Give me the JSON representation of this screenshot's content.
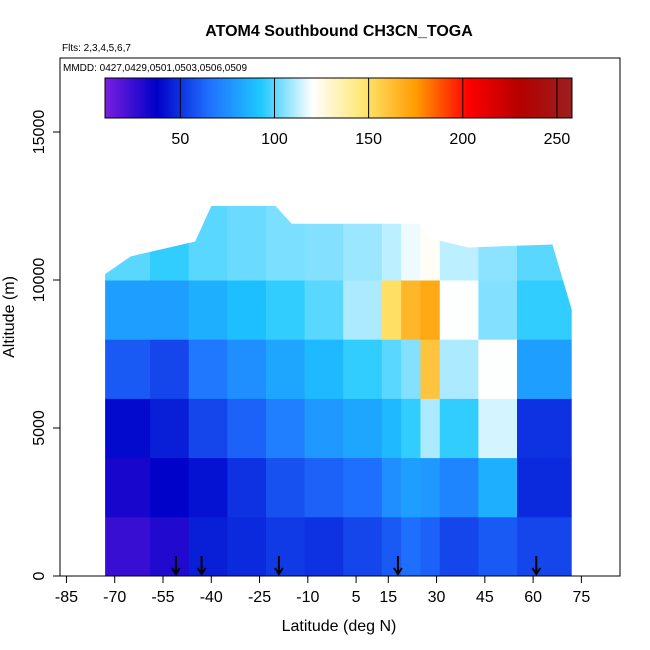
{
  "chart_data": {
    "type": "heatmap",
    "title": "ATOM4 Southbound CH3CN_TOGA",
    "flights_label": "Flts: 2,3,4,5,6,7",
    "mmdd_label": "MMDD: 0427,0429,0501,0503,0506,0509",
    "xlabel": "Latitude (deg N)",
    "ylabel": "Altitude (m)",
    "xlim": [
      -87,
      87
    ],
    "ylim": [
      0,
      17500
    ],
    "x_ticks": [
      -85,
      -70,
      -55,
      -40,
      -25,
      -10,
      5,
      15,
      30,
      45,
      60,
      75
    ],
    "x_tick_labels": [
      "-85",
      "-70",
      "-55",
      "-40",
      "-25",
      "-10",
      "5",
      "15",
      "30",
      "45",
      "60",
      "75"
    ],
    "y_ticks": [
      0,
      5000,
      10000,
      15000
    ],
    "y_tick_labels": [
      "0",
      "5000",
      "10000",
      "15000"
    ],
    "colorbar": {
      "range": [
        10,
        258
      ],
      "ticks": [
        50,
        100,
        150,
        200,
        250
      ],
      "tick_labels": [
        "50",
        "100",
        "150",
        "200",
        "250"
      ],
      "colors": [
        "#7a1fe0",
        "#0000c8",
        "#1f6fff",
        "#1ec8ff",
        "#ffffff",
        "#ffe66e",
        "#ff9a00",
        "#ff0000",
        "#b40000",
        "#9c1f1f"
      ]
    },
    "data_extent": {
      "lat_range": [
        -73,
        72
      ],
      "alt_top_by_lat": [
        [
          -73,
          10200
        ],
        [
          -65,
          10800
        ],
        [
          -45,
          11300
        ],
        [
          -40,
          12500
        ],
        [
          -20,
          12500
        ],
        [
          -15,
          11900
        ],
        [
          25,
          11900
        ],
        [
          28,
          11400
        ],
        [
          40,
          11100
        ],
        [
          66,
          11200
        ],
        [
          72,
          9000
        ]
      ]
    },
    "profile_markers_lat": [
      -51,
      -43,
      -19,
      18,
      61
    ],
    "values_grid": {
      "lat_edges": [
        -73,
        -59,
        -47,
        -35,
        -23,
        -11,
        1,
        13,
        19,
        25,
        31,
        43,
        55,
        72
      ],
      "alt_edges": [
        0,
        2000,
        4000,
        6000,
        8000,
        10000,
        12500
      ],
      "values_by_alt_band": [
        [
          25,
          30,
          45,
          48,
          52,
          50,
          55,
          60,
          65,
          62,
          55,
          60,
          55
        ],
        [
          32,
          38,
          42,
          50,
          58,
          62,
          65,
          75,
          80,
          78,
          72,
          85,
          48
        ],
        [
          40,
          45,
          55,
          62,
          70,
          78,
          82,
          88,
          95,
          110,
          95,
          115,
          50
        ],
        [
          60,
          55,
          68,
          75,
          82,
          88,
          95,
          100,
          105,
          160,
          110,
          120,
          80
        ],
        [
          80,
          80,
          85,
          90,
          95,
          100,
          110,
          150,
          165,
          170,
          120,
          105,
          95
        ],
        [
          100,
          95,
          100,
          102,
          104,
          105,
          108,
          112,
          118,
          122,
          112,
          106,
          100
        ]
      ]
    }
  }
}
